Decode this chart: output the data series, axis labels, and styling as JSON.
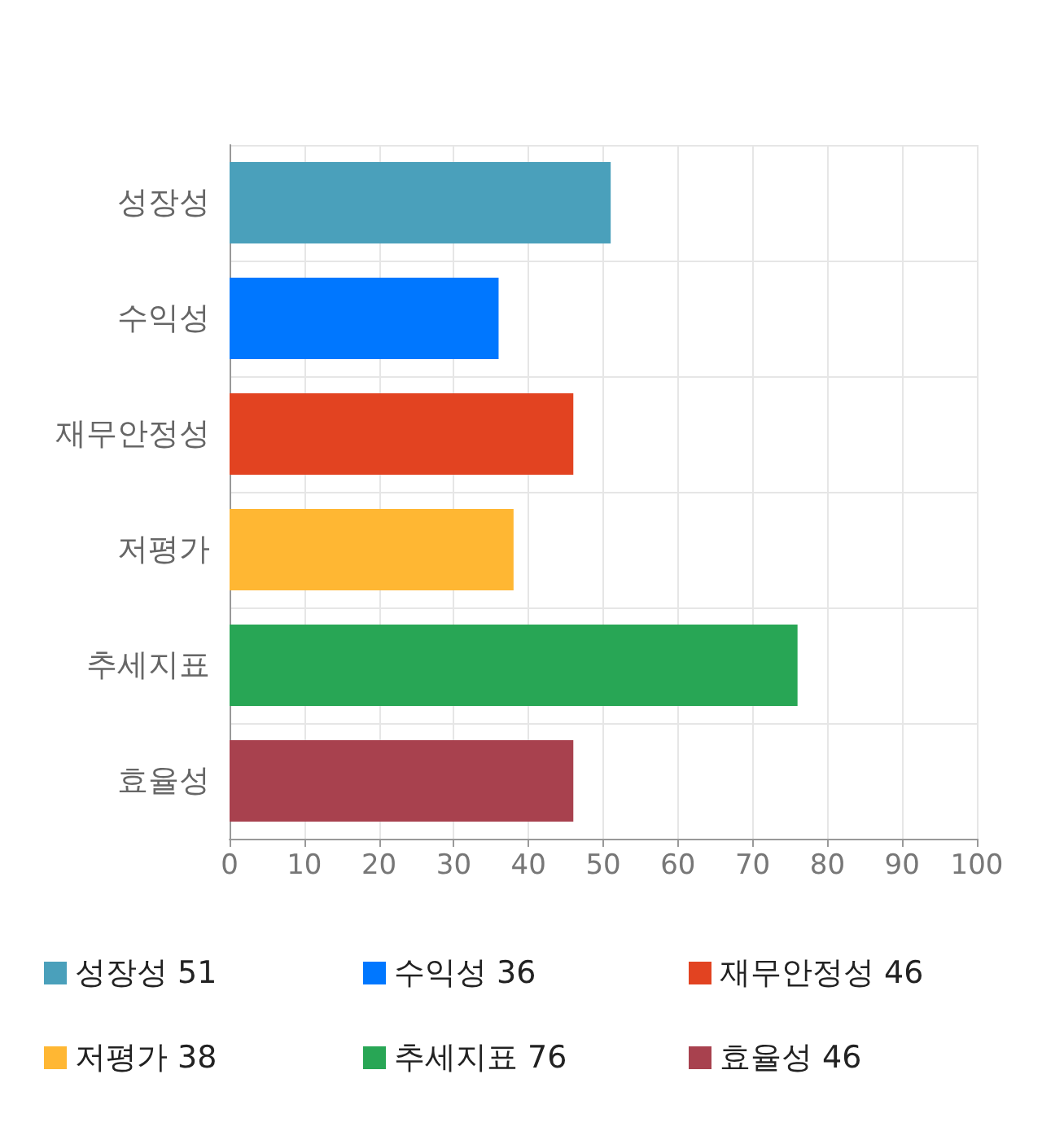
{
  "chart_data": {
    "type": "bar",
    "orientation": "horizontal",
    "categories": [
      "성장성",
      "수익성",
      "재무안정성",
      "저평가",
      "추세지표",
      "효율성"
    ],
    "series": [
      {
        "name": "성장성 51",
        "color": "#4aa0bb",
        "values": [
          51,
          null,
          null,
          null,
          null,
          null
        ]
      },
      {
        "name": "수익성 36",
        "color": "#0077ff",
        "values": [
          null,
          36,
          null,
          null,
          null,
          null
        ]
      },
      {
        "name": "재무안정성 46",
        "color": "#e24321",
        "values": [
          null,
          null,
          46,
          null,
          null,
          null
        ]
      },
      {
        "name": "저평가 38",
        "color": "#ffb733",
        "values": [
          null,
          null,
          null,
          38,
          null,
          null
        ]
      },
      {
        "name": "추세지표 76",
        "color": "#28a655",
        "values": [
          null,
          null,
          null,
          null,
          76,
          null
        ]
      },
      {
        "name": "효율성 46",
        "color": "#a8414e",
        "values": [
          null,
          null,
          null,
          null,
          null,
          46
        ]
      }
    ],
    "xlim": [
      0,
      100
    ],
    "xticks": [
      0,
      10,
      20,
      30,
      40,
      50,
      60,
      70,
      80,
      90,
      100
    ],
    "grid": true,
    "legend": "bottom"
  }
}
